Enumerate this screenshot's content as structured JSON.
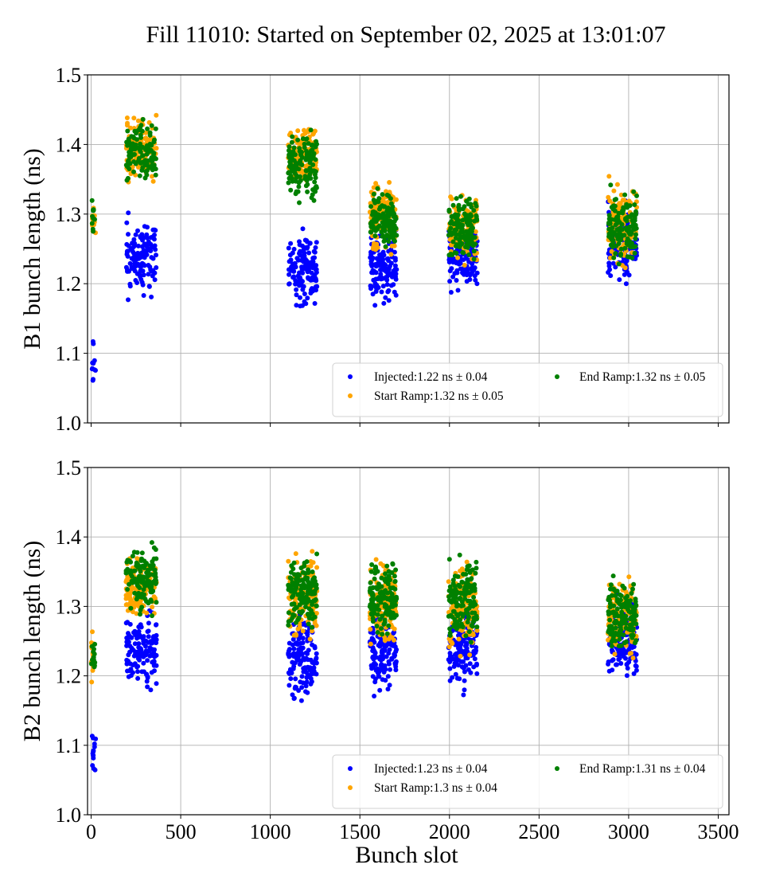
{
  "chart_data": [
    {
      "type": "scatter",
      "panel": "B1",
      "title": "Fill 11010: Started on September 02, 2025 at 13:01:07",
      "xlabel": "",
      "ylabel": "B1 bunch length (ns)",
      "xlim": [
        -20,
        3560
      ],
      "ylim": [
        1.0,
        1.5
      ],
      "xticks": [
        0,
        500,
        1000,
        1500,
        2000,
        2500,
        3000,
        3500
      ],
      "xtick_labels_visible": false,
      "yticks": [
        1.0,
        1.1,
        1.2,
        1.3,
        1.4,
        1.5
      ],
      "ytick_labels": [
        "1.0",
        "1.1",
        "1.2",
        "1.3",
        "1.4",
        "1.5"
      ],
      "grid": true,
      "legend_position": "lower-right",
      "legend_columns": 2,
      "series": [
        {
          "name": "Injected",
          "legend_label": "Injected:1.22 ns ± 0.04",
          "mean": 1.22,
          "std": 0.04,
          "color": "#0000ff",
          "seed": 11,
          "trains": [
            {
              "x": [
                5,
                25
              ],
              "y": [
                1.04,
                1.13
              ],
              "n": 12
            },
            {
              "x": [
                195,
                365
              ],
              "y": [
                1.17,
                1.305
              ],
              "n": 120
            },
            {
              "x": [
                1100,
                1260
              ],
              "y": [
                1.15,
                1.29
              ],
              "n": 130
            },
            {
              "x": [
                1555,
                1705
              ],
              "y": [
                1.15,
                1.3
              ],
              "n": 130
            },
            {
              "x": [
                1995,
                2155
              ],
              "y": [
                1.175,
                1.3
              ],
              "n": 130
            },
            {
              "x": [
                2885,
                3045
              ],
              "y": [
                1.18,
                1.33
              ],
              "n": 130
            }
          ]
        },
        {
          "name": "Start Ramp",
          "legend_label": "Start Ramp:1.32 ns ± 0.05",
          "mean": 1.32,
          "std": 0.05,
          "color": "#ffa500",
          "seed": 23,
          "trains": [
            {
              "x": [
                5,
                25
              ],
              "y": [
                1.25,
                1.33
              ],
              "n": 12
            },
            {
              "x": [
                195,
                365
              ],
              "y": [
                1.33,
                1.46
              ],
              "n": 120
            },
            {
              "x": [
                1100,
                1260
              ],
              "y": [
                1.33,
                1.435
              ],
              "n": 130
            },
            {
              "x": [
                1555,
                1705
              ],
              "y": [
                1.23,
                1.37
              ],
              "n": 130
            },
            {
              "x": [
                1995,
                2155
              ],
              "y": [
                1.22,
                1.34
              ],
              "n": 130
            },
            {
              "x": [
                2885,
                3045
              ],
              "y": [
                1.21,
                1.365
              ],
              "n": 130
            }
          ]
        },
        {
          "name": "End Ramp",
          "legend_label": "End Ramp:1.32 ns ± 0.05",
          "mean": 1.32,
          "std": 0.05,
          "color": "#008000",
          "seed": 37,
          "trains": [
            {
              "x": [
                5,
                25
              ],
              "y": [
                1.255,
                1.34
              ],
              "n": 12
            },
            {
              "x": [
                195,
                365
              ],
              "y": [
                1.335,
                1.44
              ],
              "n": 120
            },
            {
              "x": [
                1100,
                1260
              ],
              "y": [
                1.3,
                1.43
              ],
              "n": 130
            },
            {
              "x": [
                1555,
                1705
              ],
              "y": [
                1.24,
                1.35
              ],
              "n": 130
            },
            {
              "x": [
                1995,
                2155
              ],
              "y": [
                1.22,
                1.34
              ],
              "n": 130
            },
            {
              "x": [
                2885,
                3045
              ],
              "y": [
                1.21,
                1.355
              ],
              "n": 130
            }
          ]
        }
      ]
    },
    {
      "type": "scatter",
      "panel": "B2",
      "title": "",
      "xlabel": "Bunch slot",
      "ylabel": "B2 bunch length (ns)",
      "xlim": [
        -20,
        3560
      ],
      "ylim": [
        1.0,
        1.5
      ],
      "xticks": [
        0,
        500,
        1000,
        1500,
        2000,
        2500,
        3000,
        3500
      ],
      "xtick_labels": [
        "0",
        "500",
        "1000",
        "1500",
        "2000",
        "2500",
        "3000",
        "3500"
      ],
      "yticks": [
        1.0,
        1.1,
        1.2,
        1.3,
        1.4,
        1.5
      ],
      "ytick_labels": [
        "1.0",
        "1.1",
        "1.2",
        "1.3",
        "1.4",
        "1.5"
      ],
      "grid": true,
      "legend_position": "lower-right",
      "legend_columns": 2,
      "series": [
        {
          "name": "Injected",
          "legend_label": "Injected:1.23 ns ± 0.04",
          "mean": 1.23,
          "std": 0.04,
          "color": "#0000ff",
          "seed": 51,
          "trains": [
            {
              "x": [
                0,
                25
              ],
              "y": [
                1.04,
                1.14
              ],
              "n": 14
            },
            {
              "x": [
                195,
                365
              ],
              "y": [
                1.17,
                1.31
              ],
              "n": 130
            },
            {
              "x": [
                1100,
                1260
              ],
              "y": [
                1.145,
                1.3
              ],
              "n": 140
            },
            {
              "x": [
                1555,
                1705
              ],
              "y": [
                1.16,
                1.31
              ],
              "n": 140
            },
            {
              "x": [
                1995,
                2155
              ],
              "y": [
                1.165,
                1.31
              ],
              "n": 140
            },
            {
              "x": [
                2885,
                3045
              ],
              "y": [
                1.18,
                1.32
              ],
              "n": 140
            }
          ]
        },
        {
          "name": "Start Ramp",
          "legend_label": "Start Ramp:1.3 ns ± 0.04",
          "mean": 1.3,
          "std": 0.04,
          "color": "#ffa500",
          "seed": 63,
          "trains": [
            {
              "x": [
                0,
                25
              ],
              "y": [
                1.18,
                1.265
              ],
              "n": 14
            },
            {
              "x": [
                195,
                365
              ],
              "y": [
                1.275,
                1.385
              ],
              "n": 130
            },
            {
              "x": [
                1100,
                1260
              ],
              "y": [
                1.24,
                1.39
              ],
              "n": 140
            },
            {
              "x": [
                1555,
                1705
              ],
              "y": [
                1.23,
                1.385
              ],
              "n": 140
            },
            {
              "x": [
                1995,
                2155
              ],
              "y": [
                1.215,
                1.38
              ],
              "n": 140
            },
            {
              "x": [
                2885,
                3045
              ],
              "y": [
                1.215,
                1.355
              ],
              "n": 140
            }
          ]
        },
        {
          "name": "End Ramp",
          "legend_label": "End Ramp:1.31 ns ± 0.04",
          "mean": 1.31,
          "std": 0.04,
          "color": "#008000",
          "seed": 77,
          "trains": [
            {
              "x": [
                0,
                25
              ],
              "y": [
                1.19,
                1.265
              ],
              "n": 14
            },
            {
              "x": [
                195,
                365
              ],
              "y": [
                1.28,
                1.395
              ],
              "n": 130
            },
            {
              "x": [
                1100,
                1260
              ],
              "y": [
                1.25,
                1.385
              ],
              "n": 140
            },
            {
              "x": [
                1555,
                1705
              ],
              "y": [
                1.24,
                1.385
              ],
              "n": 140
            },
            {
              "x": [
                1995,
                2155
              ],
              "y": [
                1.23,
                1.385
              ],
              "n": 140
            },
            {
              "x": [
                2885,
                3045
              ],
              "y": [
                1.22,
                1.355
              ],
              "n": 140
            }
          ]
        }
      ]
    }
  ]
}
